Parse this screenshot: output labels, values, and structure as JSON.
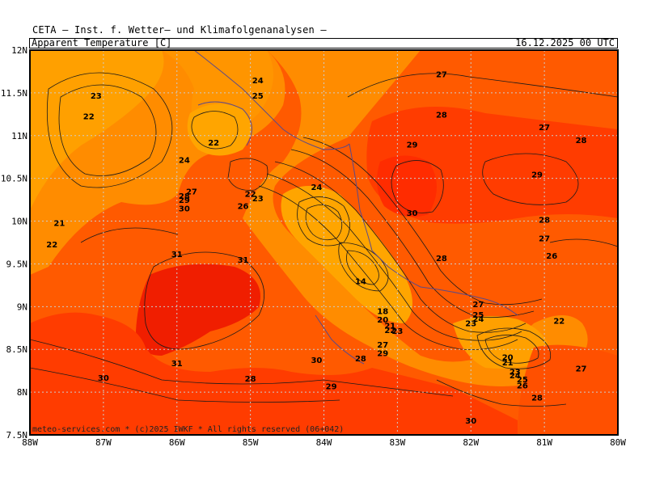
{
  "header": {
    "institute": "CETA — Inst. f. Wetter— und Klimafolgenanalysen —",
    "parameter": "Apparent_Temperature_[C]",
    "valid_time": "16.12.2025 00 UTC"
  },
  "credit": "meteo-services.com * (c)2025 IWKF * All rights reserved (06+042)",
  "axes": {
    "x_ticks": [
      "88W",
      "87W",
      "86W",
      "85W",
      "84W",
      "83W",
      "82W",
      "81W",
      "80W"
    ],
    "y_ticks": [
      "12N",
      "11.5N",
      "11N",
      "10.5N",
      "10N",
      "9.5N",
      "9N",
      "8.5N",
      "8N",
      "7.5N"
    ]
  },
  "colors": {
    "warm_orange": "#ff8c00",
    "orange_red": "#ff5a00",
    "deep_orange": "#ff3c00",
    "red": "#f01e00",
    "light_orange": "#ffa500",
    "grid": "#cccccc"
  },
  "contour_labels": [
    {
      "v": "23",
      "lon": -87.1,
      "lat": 11.47
    },
    {
      "v": "22",
      "lon": -87.2,
      "lat": 11.23
    },
    {
      "v": "24",
      "lon": -84.9,
      "lat": 11.65
    },
    {
      "v": "25",
      "lon": -84.9,
      "lat": 11.47
    },
    {
      "v": "22",
      "lon": -85.5,
      "lat": 10.92
    },
    {
      "v": "24",
      "lon": -85.9,
      "lat": 10.72
    },
    {
      "v": "27",
      "lon": -85.8,
      "lat": 10.35
    },
    {
      "v": "28",
      "lon": -85.9,
      "lat": 10.3
    },
    {
      "v": "29",
      "lon": -85.9,
      "lat": 10.25
    },
    {
      "v": "30",
      "lon": -85.9,
      "lat": 10.15
    },
    {
      "v": "22",
      "lon": -85.0,
      "lat": 10.32
    },
    {
      "v": "23",
      "lon": -84.9,
      "lat": 10.27
    },
    {
      "v": "26",
      "lon": -85.1,
      "lat": 10.18
    },
    {
      "v": "21",
      "lon": -87.6,
      "lat": 9.98
    },
    {
      "v": "22",
      "lon": -87.7,
      "lat": 9.73
    },
    {
      "v": "31",
      "lon": -86.0,
      "lat": 9.62
    },
    {
      "v": "31",
      "lon": -85.1,
      "lat": 9.55
    },
    {
      "v": "24",
      "lon": -84.1,
      "lat": 10.4
    },
    {
      "v": "14",
      "lon": -83.5,
      "lat": 9.3
    },
    {
      "v": "27",
      "lon": -82.4,
      "lat": 11.72
    },
    {
      "v": "28",
      "lon": -82.4,
      "lat": 11.25
    },
    {
      "v": "29",
      "lon": -82.8,
      "lat": 10.9
    },
    {
      "v": "30",
      "lon": -82.8,
      "lat": 10.1
    },
    {
      "v": "27",
      "lon": -81.0,
      "lat": 11.1
    },
    {
      "v": "28",
      "lon": -80.5,
      "lat": 10.95
    },
    {
      "v": "29",
      "lon": -81.1,
      "lat": 10.55
    },
    {
      "v": "28",
      "lon": -81.0,
      "lat": 10.02
    },
    {
      "v": "27",
      "lon": -81.0,
      "lat": 9.8
    },
    {
      "v": "26",
      "lon": -80.9,
      "lat": 9.6
    },
    {
      "v": "28",
      "lon": -82.4,
      "lat": 9.57
    },
    {
      "v": "18",
      "lon": -83.2,
      "lat": 8.95
    },
    {
      "v": "20",
      "lon": -83.2,
      "lat": 8.85
    },
    {
      "v": "21",
      "lon": -83.1,
      "lat": 8.78
    },
    {
      "v": "22",
      "lon": -83.1,
      "lat": 8.73
    },
    {
      "v": "23",
      "lon": -83.0,
      "lat": 8.72
    },
    {
      "v": "27",
      "lon": -83.2,
      "lat": 8.56
    },
    {
      "v": "29",
      "lon": -83.2,
      "lat": 8.46
    },
    {
      "v": "28",
      "lon": -83.5,
      "lat": 8.4
    },
    {
      "v": "30",
      "lon": -84.1,
      "lat": 8.38
    },
    {
      "v": "29",
      "lon": -83.9,
      "lat": 8.07
    },
    {
      "v": "28",
      "lon": -85.0,
      "lat": 8.16
    },
    {
      "v": "30",
      "lon": -87.0,
      "lat": 8.17
    },
    {
      "v": "31",
      "lon": -86.0,
      "lat": 8.34
    },
    {
      "v": "27",
      "lon": -81.9,
      "lat": 9.03
    },
    {
      "v": "25",
      "lon": -81.9,
      "lat": 8.91
    },
    {
      "v": "24",
      "lon": -81.9,
      "lat": 8.86
    },
    {
      "v": "23",
      "lon": -82.0,
      "lat": 8.81
    },
    {
      "v": "22",
      "lon": -80.8,
      "lat": 8.84
    },
    {
      "v": "20",
      "lon": -81.5,
      "lat": 8.41
    },
    {
      "v": "21",
      "lon": -81.5,
      "lat": 8.35
    },
    {
      "v": "23",
      "lon": -81.4,
      "lat": 8.24
    },
    {
      "v": "24",
      "lon": -81.4,
      "lat": 8.2
    },
    {
      "v": "25",
      "lon": -81.3,
      "lat": 8.15
    },
    {
      "v": "26",
      "lon": -81.3,
      "lat": 8.08
    },
    {
      "v": "27",
      "lon": -80.5,
      "lat": 8.28
    },
    {
      "v": "28",
      "lon": -81.1,
      "lat": 7.94
    },
    {
      "v": "30",
      "lon": -82.0,
      "lat": 7.67
    }
  ]
}
